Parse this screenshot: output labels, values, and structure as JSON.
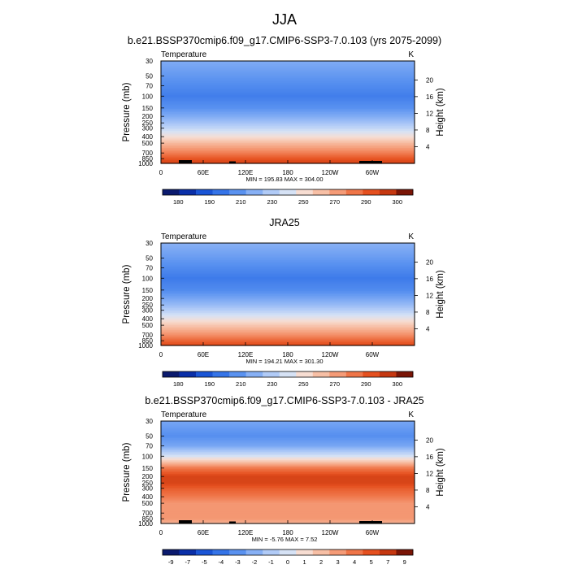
{
  "title": "JJA",
  "colorbar_abs": {
    "colors": [
      "#0b1a6e",
      "#0a2fa8",
      "#1a55d6",
      "#3574e8",
      "#5a92f0",
      "#87b0f5",
      "#b1cbf7",
      "#d6e2f5",
      "#f7ddd2",
      "#f7bfa5",
      "#f59b77",
      "#ef7548",
      "#e5501f",
      "#c53710",
      "#7a1506"
    ],
    "labels": [
      "180",
      "190",
      "210",
      "230",
      "250",
      "270",
      "290",
      "300"
    ]
  },
  "colorbar_diff": {
    "colors": [
      "#0b1a6e",
      "#0a2fa8",
      "#1a55d6",
      "#3574e8",
      "#5a92f0",
      "#87b0f5",
      "#b1cbf7",
      "#d6e2f5",
      "#f7ddd2",
      "#f7bfa5",
      "#f59b77",
      "#ef7548",
      "#e5501f",
      "#c53710",
      "#7a1506"
    ],
    "labels": [
      "-9",
      "-7",
      "-5",
      "-4",
      "-3",
      "-2",
      "-1",
      "0",
      "1",
      "2",
      "3",
      "4",
      "5",
      "7",
      "9"
    ]
  },
  "panels": [
    {
      "title": "b.e21.BSSP370cmip6.f09_g17.CMIP6-SSP3-7.0.103 (yrs 2075-2099)",
      "var_label": "Temperature",
      "unit": "K",
      "stats": "MIN = 195.83  MAX = 304.00",
      "colorbar": "abs"
    },
    {
      "title": "JRA25",
      "var_label": "Temperature",
      "unit": "K",
      "stats": "MIN = 194.21  MAX = 301.30",
      "colorbar": "abs"
    },
    {
      "title": "b.e21.BSSP370cmip6.f09_g17.CMIP6-SSP3-7.0.103 - JRA25",
      "var_label": "Temperature",
      "unit": "K",
      "stats": "MIN =  -5.76  MAX =   7.52",
      "colorbar": "diff"
    }
  ],
  "chart_data": {
    "type": "heatmap",
    "x_ticks": [
      "0",
      "60E",
      "120E",
      "180",
      "120W",
      "60W"
    ],
    "y_left_label": "Pressure (mb)",
    "y_left_ticks": [
      "30",
      "50",
      "70",
      "100",
      "150",
      "200",
      "250",
      "300",
      "400",
      "500",
      "700",
      "850",
      "1000"
    ],
    "y_right_label": "Height (km)",
    "y_right_ticks": [
      "20",
      "16",
      "12",
      "8",
      "4"
    ],
    "ylim": [
      1000,
      30
    ],
    "panels": [
      {
        "name": "model",
        "levels_mb": [
          30,
          50,
          70,
          100,
          150,
          200,
          250,
          300,
          400,
          500,
          700,
          850,
          1000
        ],
        "values_K": [
          220,
          214,
          210,
          206,
          212,
          220,
          228,
          235,
          248,
          260,
          275,
          285,
          292
        ]
      },
      {
        "name": "reanalysis",
        "levels_mb": [
          30,
          50,
          70,
          100,
          150,
          200,
          250,
          300,
          400,
          500,
          700,
          850,
          1000
        ],
        "values_K": [
          222,
          215,
          210,
          205,
          210,
          218,
          225,
          232,
          245,
          256,
          271,
          281,
          289
        ]
      },
      {
        "name": "difference",
        "levels_mb": [
          30,
          50,
          70,
          100,
          150,
          200,
          250,
          300,
          400,
          500,
          700,
          850,
          1000
        ],
        "values_K": [
          -3,
          -4,
          -3,
          0,
          5,
          7,
          7,
          6,
          5,
          4,
          4,
          4,
          3
        ]
      }
    ]
  }
}
